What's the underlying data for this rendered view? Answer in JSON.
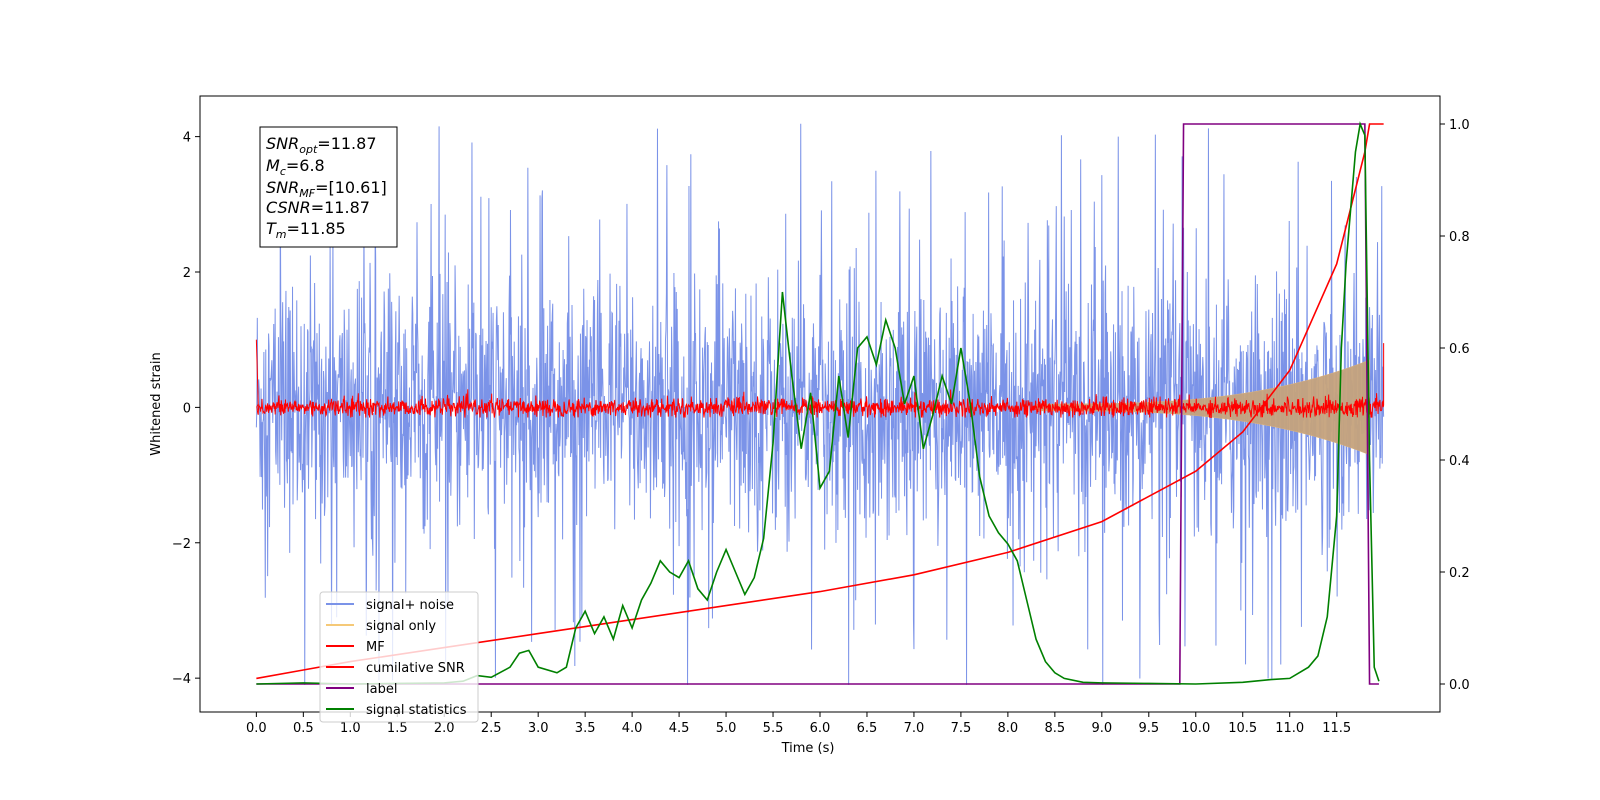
{
  "chart_data": {
    "type": "line",
    "xlabel": "Time (s)",
    "ylabel_left": "Whitened strain",
    "ylabel_right": "",
    "xlim": [
      -0.6,
      12.6
    ],
    "ylim_left": [
      -4.5,
      4.6
    ],
    "ylim_right": [
      -0.05,
      1.05
    ],
    "x_ticks": [
      "0.0",
      "0.5",
      "1.0",
      "1.5",
      "2.0",
      "2.5",
      "3.0",
      "3.5",
      "4.0",
      "4.5",
      "5.0",
      "5.5",
      "6.0",
      "6.5",
      "7.0",
      "7.5",
      "8.0",
      "8.5",
      "9.0",
      "9.5",
      "10.0",
      "10.5",
      "11.0",
      "11.5"
    ],
    "y_ticks_left": [
      "4",
      "2",
      "0",
      "−2",
      "−4"
    ],
    "y_ticks_right": [
      "1.0",
      "0.8",
      "0.6",
      "0.4",
      "0.2",
      "0.0"
    ],
    "grid": false,
    "legend_position": "lower-left",
    "info_box": {
      "snr_opt": {
        "main": "SNR",
        "sub": "opt",
        "value": "=11.87"
      },
      "mc": {
        "main": "M",
        "sub": "c",
        "value": "=6.8"
      },
      "snr_mf": {
        "main": "SNR",
        "sub": "MF",
        "value": "=[10.61]"
      },
      "csnr": {
        "main": "CSNR",
        "sub": "",
        "value": "=11.87"
      },
      "tm": {
        "main": "T",
        "sub": "m",
        "value": "=11.85"
      }
    },
    "series": [
      {
        "name": "signal+ noise",
        "color": "#7b93e8",
        "axis": "left",
        "style": "noise band, amplitude about ±2 with spikes to ±4.2",
        "x_range": [
          0.0,
          12.0
        ]
      },
      {
        "name": "signal only",
        "color": "#f5c978",
        "axis": "left",
        "style": "chirp envelope growing to ±0.7 near 11.8 s",
        "x_range": [
          0.0,
          12.0
        ]
      },
      {
        "name": "MF",
        "color": "#ff0000",
        "axis": "left",
        "style": "noise band, amplitude about ±0.15",
        "x_range": [
          0.0,
          12.0
        ]
      },
      {
        "name": "cumilative SNR",
        "color": "#ff0000",
        "axis": "right",
        "x": [
          0.0,
          0.5,
          1.0,
          2.0,
          3.0,
          4.0,
          5.0,
          6.0,
          7.0,
          8.0,
          9.0,
          10.0,
          10.5,
          11.0,
          11.5,
          11.8,
          11.85,
          12.0
        ],
        "y": [
          0.01,
          0.025,
          0.04,
          0.065,
          0.09,
          0.115,
          0.14,
          0.165,
          0.195,
          0.235,
          0.29,
          0.38,
          0.45,
          0.56,
          0.75,
          0.95,
          1.0,
          1.0
        ]
      },
      {
        "name": "label",
        "color": "#800080",
        "axis": "right",
        "x": [
          0.0,
          9.83,
          9.87,
          11.8,
          11.85,
          11.87,
          11.95
        ],
        "y": [
          0.0,
          0.0,
          1.0,
          1.0,
          0.0,
          0.0,
          0.0
        ]
      },
      {
        "name": "signal statistics",
        "color": "#008000",
        "axis": "right",
        "x": [
          0.0,
          0.5,
          1.0,
          1.5,
          2.0,
          2.2,
          2.35,
          2.5,
          2.7,
          2.8,
          2.9,
          3.0,
          3.2,
          3.3,
          3.4,
          3.5,
          3.6,
          3.7,
          3.8,
          3.9,
          4.0,
          4.1,
          4.2,
          4.3,
          4.4,
          4.5,
          4.6,
          4.7,
          4.8,
          4.9,
          5.0,
          5.1,
          5.2,
          5.3,
          5.4,
          5.5,
          5.6,
          5.7,
          5.8,
          5.9,
          6.0,
          6.1,
          6.2,
          6.3,
          6.4,
          6.5,
          6.6,
          6.7,
          6.8,
          6.9,
          7.0,
          7.1,
          7.2,
          7.3,
          7.4,
          7.5,
          7.6,
          7.7,
          7.8,
          7.9,
          8.0,
          8.1,
          8.2,
          8.3,
          8.4,
          8.5,
          8.6,
          8.8,
          9.0,
          9.5,
          10.0,
          10.5,
          10.8,
          11.0,
          11.1,
          11.2,
          11.3,
          11.4,
          11.5,
          11.55,
          11.6,
          11.7,
          11.75,
          11.8,
          11.85,
          11.9,
          11.95
        ],
        "y": [
          0.0,
          0.002,
          0.0,
          0.001,
          0.002,
          0.005,
          0.015,
          0.012,
          0.03,
          0.055,
          0.06,
          0.03,
          0.02,
          0.03,
          0.1,
          0.13,
          0.09,
          0.12,
          0.08,
          0.14,
          0.1,
          0.15,
          0.18,
          0.22,
          0.2,
          0.19,
          0.22,
          0.17,
          0.15,
          0.2,
          0.24,
          0.2,
          0.16,
          0.19,
          0.26,
          0.43,
          0.7,
          0.55,
          0.42,
          0.52,
          0.35,
          0.38,
          0.55,
          0.44,
          0.6,
          0.62,
          0.57,
          0.65,
          0.6,
          0.5,
          0.55,
          0.42,
          0.48,
          0.55,
          0.5,
          0.6,
          0.5,
          0.37,
          0.3,
          0.27,
          0.25,
          0.22,
          0.15,
          0.08,
          0.04,
          0.02,
          0.01,
          0.003,
          0.002,
          0.001,
          0.0,
          0.003,
          0.008,
          0.01,
          0.02,
          0.03,
          0.05,
          0.12,
          0.3,
          0.6,
          0.75,
          0.95,
          1.0,
          0.98,
          0.4,
          0.03,
          0.005
        ]
      }
    ]
  }
}
